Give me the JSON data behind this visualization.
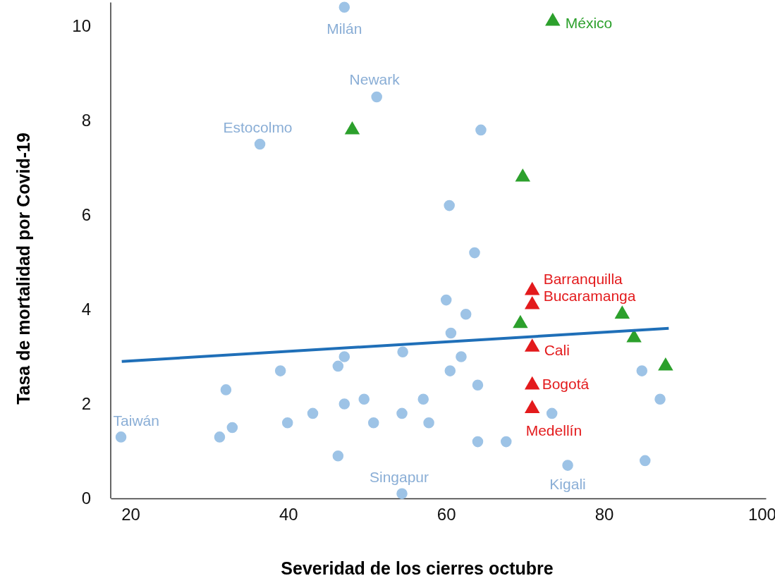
{
  "chart_data": {
    "type": "scatter",
    "xlabel": "Severidad de los cierres octubre",
    "ylabel": "Tasa de mortalidad por Covid-19",
    "xlim": [
      17.5,
      100.5
    ],
    "ylim": [
      0,
      10.5
    ],
    "xticks": [
      20,
      40,
      60,
      80,
      100
    ],
    "yticks": [
      0,
      2,
      4,
      6,
      8,
      10
    ],
    "grid": false,
    "series": [
      {
        "color": "#9dc3e6",
        "marker": "circle",
        "x": [
          47.1,
          51.2,
          36.4,
          64.4,
          60.4,
          63.6,
          60.0,
          62.5,
          60.6,
          61.9,
          54.5,
          46.3,
          47.1,
          39.0,
          32.1,
          47.1,
          49.6,
          57.1,
          43.1,
          39.9,
          50.8,
          54.4,
          57.8,
          32.9,
          31.3,
          18.8,
          46.3,
          54.4,
          60.5,
          64.0,
          64.0,
          67.6,
          73.4,
          75.4,
          85.2,
          84.8,
          87.1
        ],
        "values": [
          10.4,
          8.5,
          7.5,
          7.8,
          6.2,
          5.2,
          4.2,
          3.9,
          3.5,
          3.0,
          3.1,
          2.8,
          3.0,
          2.7,
          2.3,
          2.0,
          2.1,
          2.1,
          1.8,
          1.6,
          1.6,
          1.8,
          1.6,
          1.5,
          1.3,
          1.3,
          0.9,
          0.1,
          2.7,
          2.4,
          1.2,
          1.2,
          1.8,
          0.7,
          0.8,
          2.7,
          2.1
        ]
      },
      {
        "color": "#2ca02c",
        "marker": "triangle",
        "x": [
          73.5,
          48.1,
          69.7,
          69.4,
          82.3,
          83.8,
          87.8
        ],
        "values": [
          10.1,
          7.8,
          6.8,
          3.7,
          3.9,
          3.4,
          2.8
        ]
      },
      {
        "color": "#e31a1c",
        "marker": "triangle",
        "x": [
          70.9,
          70.9,
          70.9,
          70.9,
          70.9
        ],
        "values": [
          4.4,
          4.1,
          3.2,
          2.4,
          1.9
        ]
      },
      {
        "type": "line",
        "color": "#1f6fb8",
        "marker": "none",
        "line_style": "solid",
        "x": [
          18.9,
          88.2
        ],
        "values": [
          2.9,
          3.6
        ]
      }
    ],
    "annotations": [
      {
        "text": "Milán",
        "x": 47.1,
        "y": 10.4
      },
      {
        "text": "Newark",
        "x": 51.2,
        "y": 8.5
      },
      {
        "text": "Estocolmo",
        "x": 36.4,
        "y": 7.5
      },
      {
        "text": "Taiwán",
        "x": 18.8,
        "y": 1.3
      },
      {
        "text": "Singapur",
        "x": 54.4,
        "y": 0.1
      },
      {
        "text": "Kigali",
        "x": 75.4,
        "y": 0.7
      },
      {
        "text": "México",
        "x": 73.5,
        "y": 10.1
      },
      {
        "text": "Barranquilla",
        "x": 70.9,
        "y": 4.4
      },
      {
        "text": "Bucaramanga",
        "x": 70.9,
        "y": 4.1
      },
      {
        "text": "Cali",
        "x": 70.9,
        "y": 3.2
      },
      {
        "text": "Bogotá",
        "x": 70.9,
        "y": 2.4
      },
      {
        "text": "Medellín",
        "x": 70.9,
        "y": 1.9
      }
    ]
  }
}
